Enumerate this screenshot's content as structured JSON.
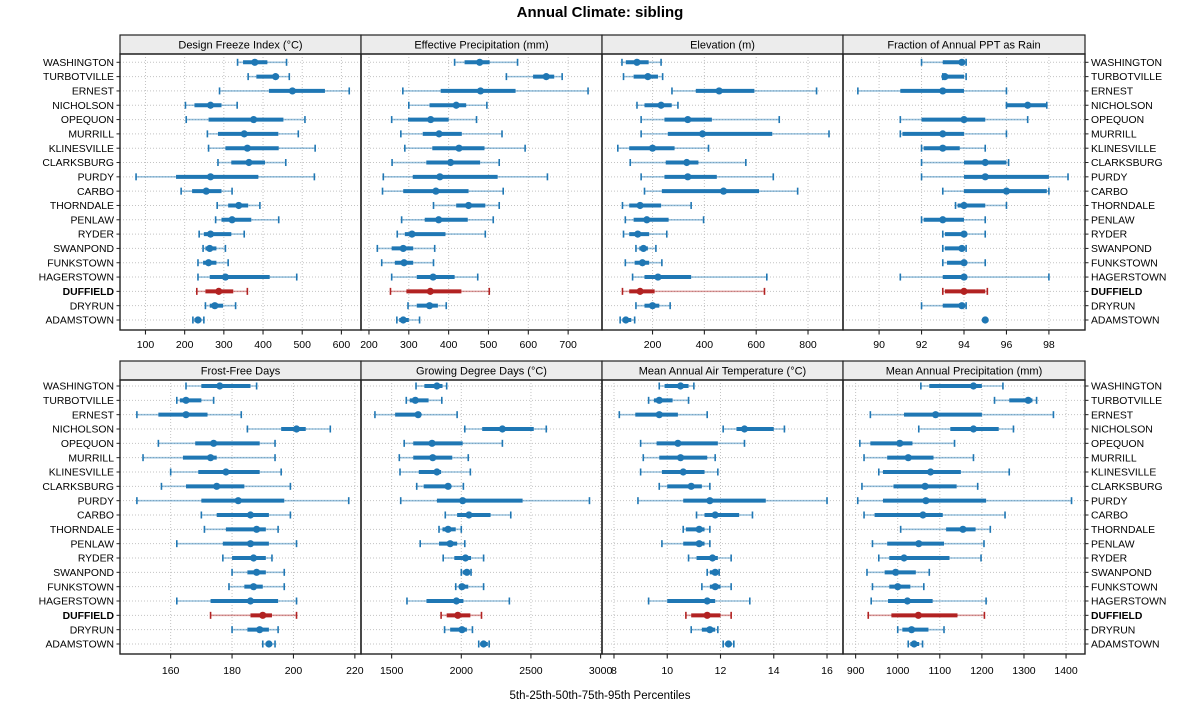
{
  "title": "Annual Climate: sibling",
  "caption": "5th-25th-50th-75th-95th Percentiles",
  "colors": {
    "series_blue": "#1F77B4",
    "highlight_red": "#B22222",
    "strip_bg": "#ECECEC",
    "grid": "#C3C3C3",
    "border": "#222222",
    "tick_text": "#000000"
  },
  "stations": [
    "WASHINGTON",
    "TURBOTVILLE",
    "ERNEST",
    "NICHOLSON",
    "OPEQUON",
    "MURRILL",
    "KLINESVILLE",
    "CLARKSBURG",
    "PURDY",
    "CARBO",
    "THORNDALE",
    "PENLAW",
    "RYDER",
    "SWANPOND",
    "FUNKSTOWN",
    "HAGERSTOWN",
    "DUFFIELD",
    "DRYRUN",
    "ADAMSTOWN"
  ],
  "highlight_station": "DUFFIELD",
  "percentiles": [
    5,
    25,
    50,
    75,
    95
  ],
  "chart_data": [
    {
      "type": "scatter",
      "mark": "dot-whisker",
      "title": "Design Freeze Index (°C)",
      "xlim": [
        35,
        650
      ],
      "ticks": [
        100,
        200,
        300,
        400,
        500,
        600
      ],
      "series": [
        [
          335,
          349,
          379,
          411,
          460
        ],
        [
          362,
          383,
          432,
          440,
          467
        ],
        [
          289,
          415,
          475,
          558,
          620
        ],
        [
          202,
          225,
          266,
          294,
          334
        ],
        [
          204,
          261,
          376,
          452,
          507
        ],
        [
          258,
          285,
          352,
          439,
          490
        ],
        [
          261,
          304,
          360,
          440,
          533
        ],
        [
          285,
          319,
          364,
          405,
          458
        ],
        [
          76,
          178,
          266,
          388,
          531
        ],
        [
          191,
          219,
          255,
          294,
          321
        ],
        [
          283,
          311,
          338,
          362,
          392
        ],
        [
          279,
          294,
          321,
          370,
          440
        ],
        [
          237,
          249,
          266,
          319,
          352
        ],
        [
          247,
          253,
          264,
          281,
          304
        ],
        [
          234,
          247,
          261,
          281,
          311
        ],
        [
          234,
          264,
          304,
          417,
          486
        ],
        [
          231,
          253,
          287,
          324,
          360
        ],
        [
          253,
          264,
          277,
          298,
          330
        ],
        [
          221,
          225,
          234,
          242,
          249
        ]
      ]
    },
    {
      "type": "scatter",
      "mark": "dot-whisker",
      "title": "Effective Precipitation (mm)",
      "xlim": [
        180,
        785
      ],
      "ticks": [
        200,
        300,
        400,
        500,
        600,
        700
      ],
      "series": [
        [
          415,
          440,
          478,
          503,
          573
        ],
        [
          545,
          612,
          645,
          665,
          685
        ],
        [
          285,
          380,
          480,
          568,
          750
        ],
        [
          300,
          352,
          419,
          444,
          496
        ],
        [
          257,
          298,
          355,
          400,
          470
        ],
        [
          280,
          335,
          376,
          433,
          534
        ],
        [
          290,
          359,
          426,
          490,
          592
        ],
        [
          258,
          344,
          405,
          479,
          527
        ],
        [
          236,
          310,
          378,
          523,
          648
        ],
        [
          234,
          286,
          368,
          450,
          537
        ],
        [
          362,
          419,
          450,
          492,
          527
        ],
        [
          282,
          340,
          375,
          448,
          512
        ],
        [
          271,
          290,
          308,
          392,
          492
        ],
        [
          221,
          257,
          286,
          311,
          365
        ],
        [
          232,
          265,
          288,
          311,
          362
        ],
        [
          257,
          320,
          361,
          415,
          473
        ],
        [
          254,
          294,
          354,
          432,
          502
        ],
        [
          298,
          320,
          352,
          373,
          394
        ],
        [
          270,
          276,
          286,
          300,
          327
        ]
      ]
    },
    {
      "type": "scatter",
      "mark": "dot-whisker",
      "title": "Elevation (m)",
      "xlim": [
        5,
        935
      ],
      "ticks": [
        200,
        400,
        600,
        800
      ],
      "series": [
        [
          82,
          97,
          140,
          185,
          233
        ],
        [
          88,
          127,
          182,
          221,
          239
        ],
        [
          275,
          367,
          457,
          593,
          833
        ],
        [
          140,
          169,
          233,
          274,
          298
        ],
        [
          156,
          246,
          336,
          429,
          689
        ],
        [
          156,
          259,
          393,
          662,
          881
        ],
        [
          66,
          110,
          200,
          285,
          416
        ],
        [
          114,
          251,
          332,
          377,
          560
        ],
        [
          156,
          246,
          336,
          448,
          666
        ],
        [
          169,
          236,
          474,
          611,
          760
        ],
        [
          84,
          110,
          152,
          233,
          349
        ],
        [
          95,
          127,
          178,
          262,
          397
        ],
        [
          88,
          110,
          143,
          187,
          255
        ],
        [
          136,
          149,
          165,
          182,
          213
        ],
        [
          95,
          131,
          161,
          187,
          236
        ],
        [
          123,
          169,
          221,
          349,
          641
        ],
        [
          84,
          110,
          152,
          208,
          632
        ],
        [
          136,
          169,
          200,
          226,
          268
        ],
        [
          75,
          84,
          97,
          118,
          131
        ]
      ]
    },
    {
      "type": "scatter",
      "mark": "dot-whisker",
      "title": "Fraction of Annual PPT as Rain",
      "xlim": [
        88.3,
        99.7
      ],
      "ticks": [
        90,
        92,
        94,
        96,
        98
      ],
      "series": [
        [
          92,
          93,
          93.9,
          94,
          94.1
        ],
        [
          93,
          93,
          93.1,
          94,
          94.1
        ],
        [
          89,
          91,
          93,
          94,
          96
        ],
        [
          96,
          96,
          97,
          97.9,
          97.9
        ],
        [
          91,
          92,
          94,
          95,
          97
        ],
        [
          91,
          91.1,
          93,
          94,
          96
        ],
        [
          92,
          92.1,
          93,
          93.8,
          95
        ],
        [
          92,
          94,
          95,
          96,
          96.1
        ],
        [
          92,
          94,
          95,
          98,
          98.9
        ],
        [
          93,
          94,
          96,
          97.9,
          98
        ],
        [
          93.6,
          93.7,
          94,
          95,
          96
        ],
        [
          92,
          92.1,
          93,
          94,
          95
        ],
        [
          93,
          93.1,
          94,
          94.1,
          95
        ],
        [
          93,
          93.1,
          93.9,
          94,
          94.1
        ],
        [
          93,
          93.2,
          94,
          94.1,
          95
        ],
        [
          91,
          93,
          94,
          94.1,
          98
        ],
        [
          93,
          93.1,
          94,
          95,
          95.1
        ],
        [
          92,
          93,
          93.9,
          94,
          94.1
        ],
        [
          95,
          95,
          95,
          95,
          95
        ]
      ]
    },
    {
      "type": "scatter",
      "mark": "dot-whisker",
      "title": "Frost-Free Days",
      "xlim": [
        143.5,
        222
      ],
      "ticks": [
        160,
        180,
        200,
        220
      ],
      "series": [
        [
          165,
          170,
          176,
          186,
          188
        ],
        [
          162,
          163,
          165,
          170,
          174
        ],
        [
          149,
          156,
          165,
          172,
          183
        ],
        [
          185,
          196,
          201,
          204,
          212
        ],
        [
          156,
          168,
          174,
          189,
          194
        ],
        [
          151,
          164,
          173,
          175,
          194
        ],
        [
          160,
          169,
          178,
          189,
          196
        ],
        [
          157,
          165,
          175,
          184,
          199
        ],
        [
          149,
          170,
          182,
          197,
          218
        ],
        [
          170,
          175,
          186,
          192,
          199
        ],
        [
          171,
          178,
          188,
          191,
          195
        ],
        [
          162,
          177,
          186,
          192,
          201
        ],
        [
          177,
          180,
          187,
          191,
          193
        ],
        [
          180,
          185,
          188,
          191,
          197
        ],
        [
          179,
          184,
          187,
          190,
          197
        ],
        [
          162,
          173,
          186,
          195,
          201
        ],
        [
          173,
          186,
          190,
          193,
          201
        ],
        [
          180,
          185,
          189,
          192,
          195
        ],
        [
          190,
          191,
          192,
          193,
          194
        ]
      ]
    },
    {
      "type": "scatter",
      "mark": "dot-whisker",
      "title": "Growing Degree Days (°C)",
      "xlim": [
        1280,
        3010
      ],
      "ticks": [
        1500,
        2000,
        2500,
        3000
      ],
      "series": [
        [
          1675,
          1735,
          1825,
          1865,
          1895
        ],
        [
          1605,
          1630,
          1670,
          1765,
          1860
        ],
        [
          1380,
          1525,
          1690,
          1705,
          1970
        ],
        [
          2025,
          2150,
          2295,
          2520,
          2610
        ],
        [
          1590,
          1655,
          1790,
          2010,
          2295
        ],
        [
          1555,
          1655,
          1795,
          1935,
          2050
        ],
        [
          1560,
          1695,
          1825,
          1855,
          2065
        ],
        [
          1680,
          1730,
          1905,
          1910,
          2015
        ],
        [
          1565,
          1825,
          2010,
          2440,
          2920
        ],
        [
          1885,
          1970,
          2055,
          2210,
          2355
        ],
        [
          1840,
          1865,
          1905,
          1960,
          2000
        ],
        [
          1705,
          1840,
          1920,
          1970,
          2025
        ],
        [
          1870,
          1950,
          2030,
          2070,
          2160
        ],
        [
          2000,
          2010,
          2040,
          2060,
          2070
        ],
        [
          1960,
          1985,
          2005,
          2050,
          2160
        ],
        [
          1610,
          1750,
          1965,
          2015,
          2345
        ],
        [
          1855,
          1895,
          1975,
          2065,
          2145
        ],
        [
          1880,
          1920,
          2005,
          2040,
          2080
        ],
        [
          2125,
          2137,
          2160,
          2190,
          2200
        ]
      ]
    },
    {
      "type": "scatter",
      "mark": "dot-whisker",
      "title": "Mean Annual Air Temperature (°C)",
      "xlim": [
        7.55,
        16.6
      ],
      "ticks": [
        8,
        10,
        12,
        14,
        16
      ],
      "series": [
        [
          9.7,
          9.9,
          10.5,
          10.8,
          11.0
        ],
        [
          9.3,
          9.5,
          9.7,
          10.2,
          10.8
        ],
        [
          8.2,
          8.8,
          9.7,
          10.4,
          11.5
        ],
        [
          12.1,
          12.6,
          12.9,
          14.0,
          14.4
        ],
        [
          9.0,
          9.6,
          10.4,
          11.9,
          12.9
        ],
        [
          9.1,
          9.7,
          10.5,
          11.5,
          11.8
        ],
        [
          9.0,
          9.8,
          10.6,
          11.4,
          11.9
        ],
        [
          9.7,
          10.0,
          10.9,
          11.3,
          11.6
        ],
        [
          8.9,
          10.6,
          11.6,
          13.7,
          16.0
        ],
        [
          11.1,
          11.4,
          11.8,
          12.7,
          13.2
        ],
        [
          10.6,
          10.7,
          11.2,
          11.4,
          11.6
        ],
        [
          9.8,
          10.6,
          11.2,
          11.4,
          11.6
        ],
        [
          10.8,
          11.1,
          11.7,
          11.9,
          12.4
        ],
        [
          11.5,
          11.6,
          11.8,
          11.9,
          11.95
        ],
        [
          11.3,
          11.6,
          11.8,
          12.0,
          12.4
        ],
        [
          9.3,
          10.0,
          11.5,
          11.8,
          13.1
        ],
        [
          10.7,
          10.9,
          11.5,
          12.0,
          12.4
        ],
        [
          10.9,
          11.3,
          11.6,
          11.8,
          11.9
        ],
        [
          12.1,
          12.2,
          12.3,
          12.4,
          12.5
        ]
      ]
    },
    {
      "type": "scatter",
      "mark": "dot-whisker",
      "title": "Mean Annual Precipitation (mm)",
      "xlim": [
        870,
        1445
      ],
      "ticks": [
        900,
        1000,
        1100,
        1200,
        1300,
        1400
      ],
      "series": [
        [
          1055,
          1075,
          1180,
          1200,
          1250
        ],
        [
          1230,
          1265,
          1310,
          1320,
          1330
        ],
        [
          935,
          1015,
          1090,
          1200,
          1370
        ],
        [
          1050,
          1125,
          1180,
          1240,
          1275
        ],
        [
          910,
          935,
          1005,
          1035,
          1135
        ],
        [
          920,
          975,
          1025,
          1085,
          1180
        ],
        [
          955,
          965,
          1078,
          1150,
          1265
        ],
        [
          915,
          990,
          1065,
          1140,
          1190
        ],
        [
          905,
          965,
          1067,
          1210,
          1413
        ],
        [
          920,
          945,
          1060,
          1107,
          1255
        ],
        [
          1007,
          1115,
          1155,
          1185,
          1220
        ],
        [
          940,
          975,
          1050,
          1110,
          1205
        ],
        [
          955,
          980,
          1015,
          1123,
          1198
        ],
        [
          927,
          969,
          995,
          1043,
          1075
        ],
        [
          940,
          980,
          1000,
          1030,
          1062
        ],
        [
          937,
          977,
          1023,
          1083,
          1210
        ],
        [
          930,
          985,
          1049,
          1142,
          1206
        ],
        [
          1000,
          1011,
          1033,
          1073,
          1110
        ],
        [
          1025,
          1030,
          1039,
          1051,
          1059
        ]
      ]
    }
  ]
}
